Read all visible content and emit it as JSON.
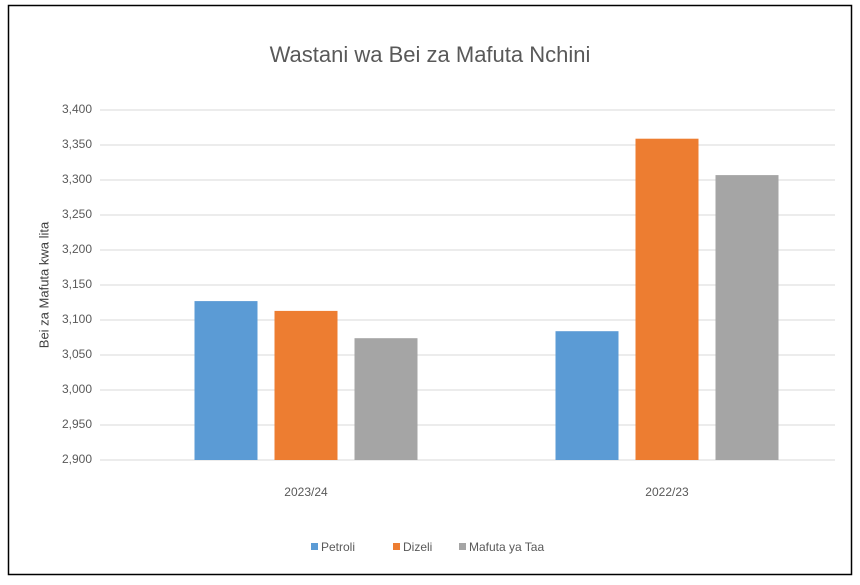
{
  "chart_data": {
    "type": "bar",
    "title": "Wastani wa Bei za Mafuta Nchini",
    "y_label": "Bei za Mafuta kwa lita",
    "categories": [
      "2023/24",
      "2022/23"
    ],
    "series": [
      {
        "name": "Petroli",
        "color": "#5b9bd5",
        "values": [
          3127,
          3084
        ]
      },
      {
        "name": "Dizeli",
        "color": "#ed7d31",
        "values": [
          3113,
          3359
        ]
      },
      {
        "name": "Mafuta ya Taa",
        "color": "#a5a5a5",
        "values": [
          3074,
          3307
        ]
      }
    ],
    "ylim": [
      2900,
      3400
    ],
    "yticks": [
      {
        "value": 2900,
        "label": "2,900"
      },
      {
        "value": 2950,
        "label": "2,950"
      },
      {
        "value": 3000,
        "label": "3,000"
      },
      {
        "value": 3050,
        "label": "3,050"
      },
      {
        "value": 3100,
        "label": "3,100"
      },
      {
        "value": 3150,
        "label": "3,150"
      },
      {
        "value": 3200,
        "label": "3,200"
      },
      {
        "value": 3250,
        "label": "3,250"
      },
      {
        "value": 3300,
        "label": "3,300"
      },
      {
        "value": 3350,
        "label": "3,350"
      },
      {
        "value": 3400,
        "label": "3,400"
      }
    ],
    "grid": true,
    "legend": "bottom"
  }
}
